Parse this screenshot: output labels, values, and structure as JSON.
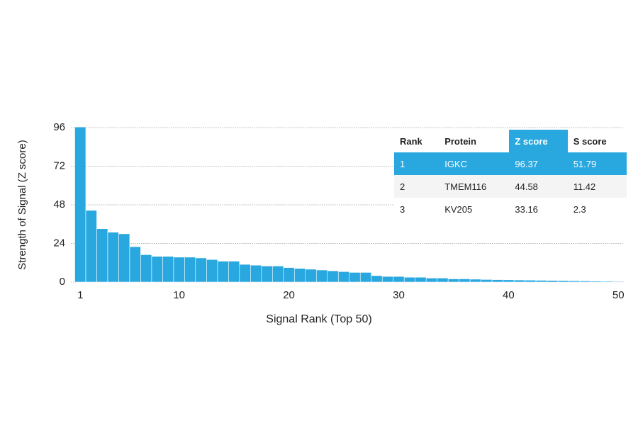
{
  "chart_data": {
    "type": "bar",
    "x_label": "Signal Rank (Top 50)",
    "y_label": "Strength of Signal (Z score)",
    "x": [
      1,
      2,
      3,
      4,
      5,
      6,
      7,
      8,
      9,
      10,
      11,
      12,
      13,
      14,
      15,
      16,
      17,
      18,
      19,
      20,
      21,
      22,
      23,
      24,
      25,
      26,
      27,
      28,
      29,
      30,
      31,
      32,
      33,
      34,
      35,
      36,
      37,
      38,
      39,
      40,
      41,
      42,
      43,
      44,
      45,
      46,
      47,
      48,
      49,
      50
    ],
    "values": [
      96.37,
      44.58,
      33.16,
      31,
      30,
      22,
      17,
      16,
      16,
      15.5,
      15.5,
      15,
      14,
      13,
      13,
      11,
      10.5,
      10,
      10,
      9,
      8.5,
      8,
      7.5,
      7,
      6.5,
      6,
      6,
      4,
      3.5,
      3.5,
      3,
      3,
      2.5,
      2.5,
      2,
      2,
      1.8,
      1.6,
      1.5,
      1.4,
      1.3,
      1.2,
      1.1,
      1,
      0.9,
      0.8,
      0.7,
      0.6,
      0.5,
      0.4
    ],
    "color": "#29a8e0",
    "xlim": [
      0.5,
      50.5
    ],
    "xticks": [
      1,
      10,
      20,
      30,
      40,
      50
    ],
    "ylim": [
      0,
      96
    ],
    "yticks": [
      0,
      24,
      48,
      72,
      96
    ],
    "grid": true
  },
  "table": {
    "columns": [
      "Rank",
      "Protein",
      "Z score",
      "S score"
    ],
    "rows": [
      [
        1,
        "IGKC",
        96.37,
        51.79
      ],
      [
        2,
        "TMEM116",
        44.58,
        11.42
      ],
      [
        3,
        "KV205",
        33.16,
        2.3
      ]
    ]
  }
}
